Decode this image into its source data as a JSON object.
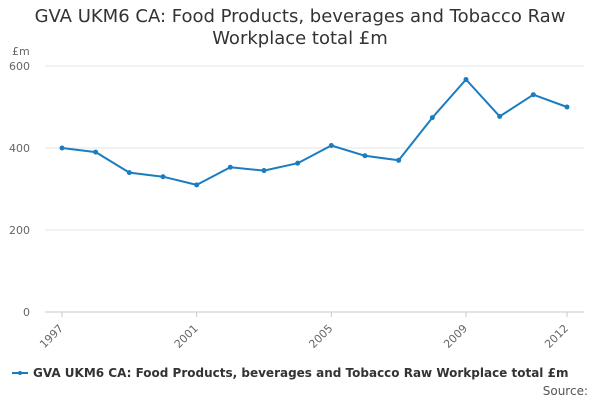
{
  "chart_data": {
    "type": "line",
    "title_lines": [
      "GVA UKM6 CA: Food Products, beverages and Tobacco Raw",
      "Workplace total £m"
    ],
    "ylabel": "£m",
    "xlabel": "",
    "ylim": [
      0,
      600
    ],
    "yticks": [
      "0",
      "200",
      "400",
      "600"
    ],
    "xtick_labels": [
      "1997",
      "2001",
      "2005",
      "2009",
      "2012"
    ],
    "grid": true,
    "legend_position": "bottom",
    "color": "#1a7dc0",
    "series": [
      {
        "name": "GVA UKM6 CA: Food Products, beverages and Tobacco Raw Workplace total £m",
        "x": [
          1997,
          1998,
          1999,
          2000,
          2001,
          2002,
          2003,
          2004,
          2005,
          2006,
          2007,
          2008,
          2009,
          2010,
          2011,
          2012
        ],
        "values": [
          400,
          390,
          340,
          330,
          310,
          353,
          345,
          363,
          406,
          381,
          370,
          474,
          567,
          477,
          530,
          500
        ]
      }
    ]
  },
  "source_label": "Source:"
}
